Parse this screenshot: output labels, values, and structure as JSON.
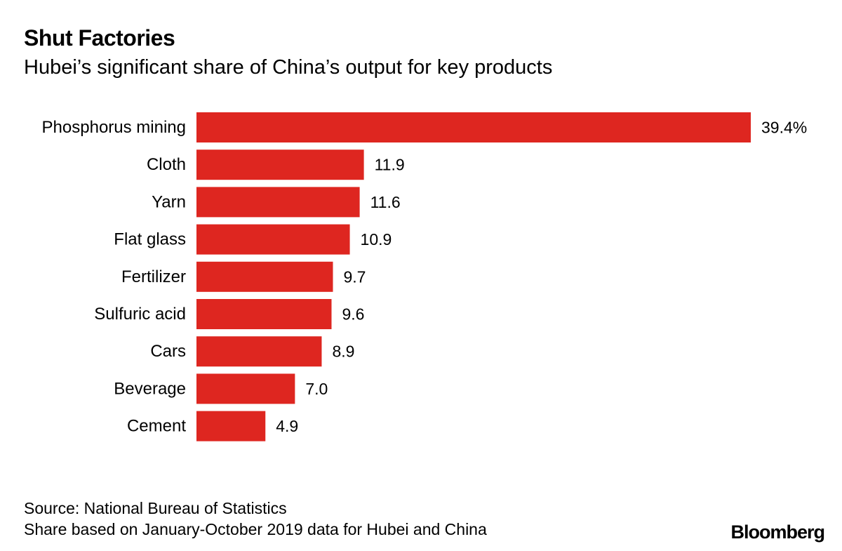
{
  "header": {
    "title": "Shut Factories",
    "subtitle": "Hubei’s significant share of China’s output for key products"
  },
  "footer": {
    "source": "Source: National Bureau of Statistics",
    "note": "Share based on January-October 2019 data for Hubei and China",
    "brand": "Bloomberg"
  },
  "colors": {
    "bar": "#de2620",
    "text": "#000000",
    "background": "#ffffff"
  },
  "chart_data": {
    "type": "bar",
    "orientation": "horizontal",
    "title": "Shut Factories",
    "subtitle": "Hubei’s significant share of China’s output for key products",
    "xlabel": "",
    "ylabel": "",
    "unit": "%",
    "xlim": [
      0,
      39.4
    ],
    "grid": false,
    "legend": "none",
    "categories": [
      "Phosphorus mining",
      "Cloth",
      "Yarn",
      "Flat glass",
      "Fertilizer",
      "Sulfuric acid",
      "Cars",
      "Beverage",
      "Cement"
    ],
    "values": [
      39.4,
      11.9,
      11.6,
      10.9,
      9.7,
      9.6,
      8.9,
      7.0,
      4.9
    ],
    "value_labels": [
      "39.4%",
      "11.9",
      "11.6",
      "10.9",
      "9.7",
      "9.6",
      "8.9",
      "7.0",
      "4.9"
    ]
  }
}
